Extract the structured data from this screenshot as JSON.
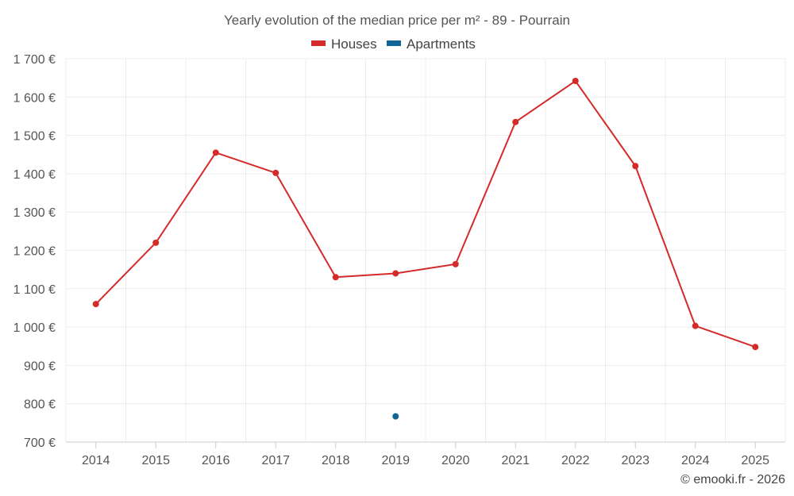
{
  "chart_data": {
    "type": "line",
    "title": "Yearly evolution of the median price per m² - 89 - Pourrain",
    "categories": [
      "2014",
      "2015",
      "2016",
      "2017",
      "2018",
      "2019",
      "2020",
      "2021",
      "2022",
      "2023",
      "2024",
      "2025"
    ],
    "y_ticks": [
      700,
      800,
      900,
      1000,
      1100,
      1200,
      1300,
      1400,
      1500,
      1600,
      1700
    ],
    "y_tick_labels": [
      "700 €",
      "800 €",
      "900 €",
      "1 000 €",
      "1 100 €",
      "1 200 €",
      "1 300 €",
      "1 400 €",
      "1 500 €",
      "1 600 €",
      "1 700 €"
    ],
    "ylim": [
      700,
      1700
    ],
    "grid": true,
    "legend_position": "top-center",
    "series": [
      {
        "name": "Houses",
        "color": "#d42a2a",
        "values": [
          1060,
          1220,
          1455,
          1402,
          1130,
          1140,
          1164,
          1535,
          1642,
          1420,
          1003,
          948
        ]
      },
      {
        "name": "Apartments",
        "color": "#0e6596",
        "values": [
          null,
          null,
          null,
          null,
          null,
          767,
          null,
          null,
          null,
          null,
          null,
          null
        ]
      }
    ],
    "credit": "© emooki.fr - 2026"
  }
}
